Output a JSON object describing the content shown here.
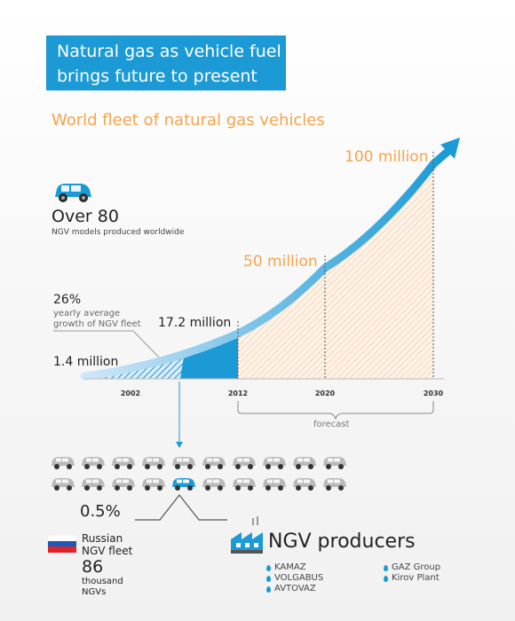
{
  "header": {
    "title_line1": "Natural gas as vehicle fuel",
    "title_line2": "brings future to present",
    "subtitle": "World fleet of natural gas vehicles"
  },
  "models": {
    "headline": "Over 80",
    "caption": "NGV models produced worldwide"
  },
  "growth": {
    "percent": "26%",
    "caption_line1": "yearly average",
    "caption_line2": "growth of NGV fleet"
  },
  "forecast_label": "forecast",
  "chart_data": {
    "type": "area",
    "x": [
      2002,
      2012,
      2020,
      2030
    ],
    "y": [
      1.4,
      17.2,
      50,
      100
    ],
    "point_labels": [
      "1.4 million",
      "17.2 million",
      "50 million",
      "100 million"
    ],
    "tick_labels": [
      "2002",
      "2012",
      "2020",
      "2030"
    ],
    "forecast_from": 2012,
    "title": "World fleet of natural gas vehicles",
    "xlabel": "",
    "ylabel": "",
    "colors": {
      "history": "#1b9ad6",
      "forecast": "#f7a34b",
      "curve": "#1b9ad6"
    }
  },
  "russia": {
    "share": "0.5%",
    "label_line1": "Russian",
    "label_line2": "NGV fleet",
    "count": "86",
    "count_line1": "thousand",
    "count_line2": "NGVs",
    "total_cars": 20,
    "highlighted_index": 14
  },
  "producers": {
    "title": "NGV producers",
    "col1": [
      "KAMAZ",
      "VOLGABUS",
      "AVTOVAZ"
    ],
    "col2": [
      "GAZ Group",
      "Kirov Plant"
    ]
  },
  "colors": {
    "accent": "#1b9ad6",
    "orange": "#f7a34b"
  }
}
